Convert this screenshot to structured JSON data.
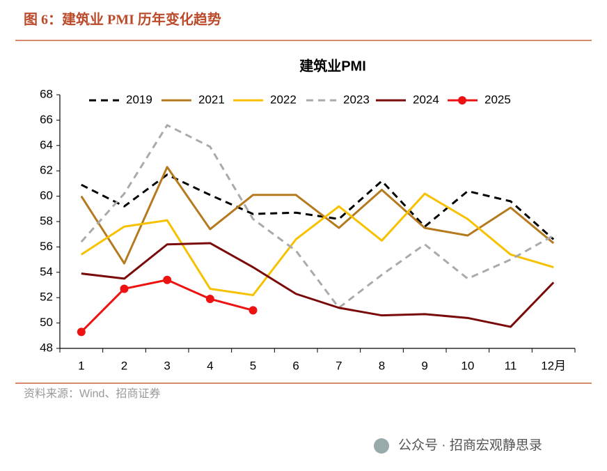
{
  "header": "图 6：建筑业 PMI 历年变化趋势",
  "source": "资料来源：Wind、招商证券",
  "watermark": "公众号 · 招商宏观静思录",
  "chart_data": {
    "type": "line",
    "title": "建筑业PMI",
    "categories": [
      "1",
      "2",
      "3",
      "4",
      "5",
      "6",
      "7",
      "8",
      "9",
      "10",
      "11",
      "12月"
    ],
    "ylim": [
      48,
      68
    ],
    "yticks": [
      48,
      50,
      52,
      54,
      56,
      58,
      60,
      62,
      64,
      66,
      68
    ],
    "grid": false,
    "legend": "top",
    "series": [
      {
        "name": "2019",
        "color": "#000000",
        "dashed": true,
        "values": [
          60.9,
          59.2,
          61.7,
          60.1,
          58.6,
          58.7,
          58.2,
          61.2,
          57.6,
          60.4,
          59.6,
          56.6
        ]
      },
      {
        "name": "2021",
        "color": "#b5791e",
        "values": [
          60.0,
          54.7,
          62.3,
          57.4,
          60.1,
          60.1,
          57.5,
          60.5,
          57.5,
          56.9,
          59.1,
          56.3
        ]
      },
      {
        "name": "2022",
        "color": "#f7c100",
        "values": [
          55.4,
          57.6,
          58.1,
          52.7,
          52.2,
          56.6,
          59.2,
          56.5,
          60.2,
          58.2,
          55.4,
          54.4
        ]
      },
      {
        "name": "2023",
        "color": "#aaaaaa",
        "dashed": true,
        "values": [
          56.4,
          60.2,
          65.6,
          63.9,
          58.2,
          55.7,
          51.2,
          53.8,
          56.2,
          53.5,
          55.0,
          56.9
        ]
      },
      {
        "name": "2024",
        "color": "#7a0a0a",
        "values": [
          53.9,
          53.5,
          56.2,
          56.3,
          54.4,
          52.3,
          51.2,
          50.6,
          50.7,
          50.4,
          49.7,
          53.2
        ]
      },
      {
        "name": "2025",
        "color": "#ee1111",
        "marker": true,
        "values": [
          49.3,
          52.7,
          53.4,
          51.9,
          51.0,
          null,
          null,
          null,
          null,
          null,
          null,
          null
        ]
      }
    ]
  }
}
